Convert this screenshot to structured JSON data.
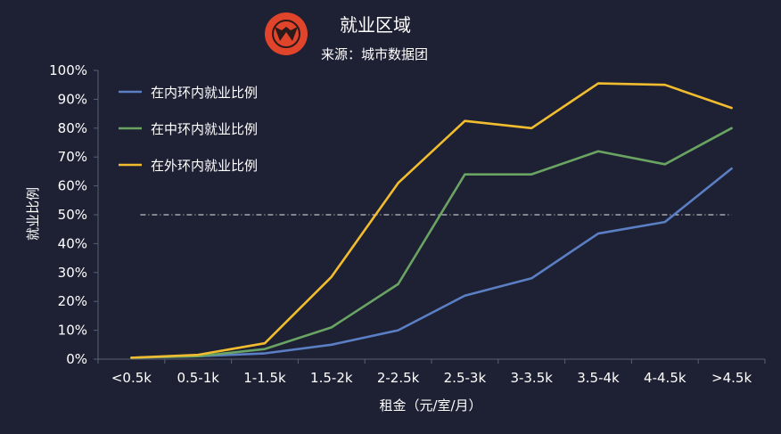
{
  "chart_data": {
    "type": "line",
    "title": "就业区域",
    "subtitle": "来源：城市数据团",
    "xlabel": "租金（元/室/月）",
    "ylabel": "就业比例",
    "categories": [
      "<0.5k",
      "0.5-1k",
      "1-1.5k",
      "1.5-2k",
      "2-2.5k",
      "2.5-3k",
      "3-3.5k",
      "3.5-4k",
      "4-4.5k",
      ">4.5k"
    ],
    "ylim": [
      0,
      100
    ],
    "yticks": [
      "0%",
      "10%",
      "20%",
      "30%",
      "40%",
      "50%",
      "60%",
      "70%",
      "80%",
      "90%",
      "100%"
    ],
    "reference_line": 50,
    "grid": false,
    "legend_position": "top-left",
    "series": [
      {
        "name": "在内环内就业比例",
        "color": "#5b7fc4",
        "values": [
          0.5,
          1,
          2,
          5,
          10,
          22,
          28,
          43.5,
          47.5,
          66
        ]
      },
      {
        "name": "在中环内就业比例",
        "color": "#6aa463",
        "values": [
          0.5,
          1,
          3.5,
          11,
          26,
          64,
          64,
          72,
          67.5,
          80
        ]
      },
      {
        "name": "在外环内就业比例",
        "color": "#f1bd2f",
        "values": [
          0.5,
          1.5,
          5.5,
          28.5,
          61,
          82.5,
          80,
          95.5,
          95,
          87
        ]
      }
    ]
  },
  "logo": {
    "color": "#e0442a",
    "name": "city-data-logo"
  }
}
